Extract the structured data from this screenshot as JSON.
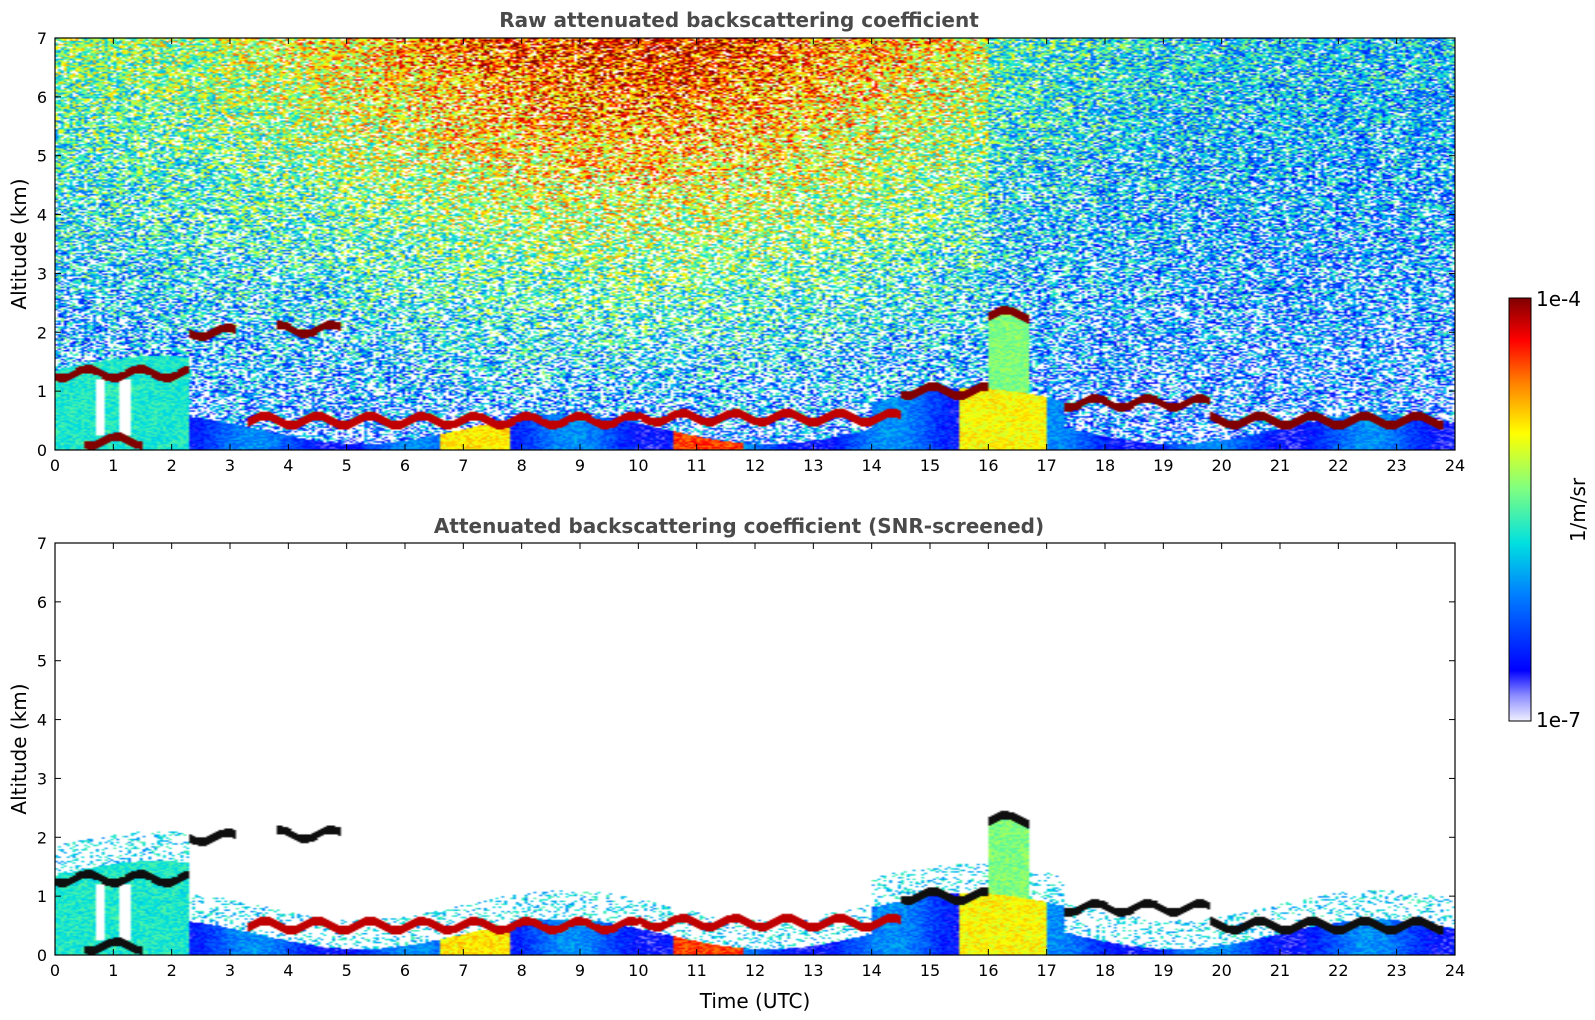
{
  "chart_data": [
    {
      "type": "heatmap",
      "title": "Raw attenuated backscattering coefficient",
      "xlabel": "",
      "ylabel": "Altitude (km)",
      "xlim": [
        0,
        24
      ],
      "ylim": [
        0,
        7
      ],
      "xticks": [
        "0",
        "1",
        "2",
        "3",
        "4",
        "5",
        "6",
        "7",
        "8",
        "9",
        "10",
        "11",
        "12",
        "13",
        "14",
        "15",
        "16",
        "17",
        "18",
        "19",
        "20",
        "21",
        "22",
        "23",
        "24"
      ],
      "yticks": [
        "0",
        "1",
        "2",
        "3",
        "4",
        "5",
        "6",
        "7"
      ],
      "noise": "high",
      "layers": [
        {
          "x": [
            0,
            2.3
          ],
          "y": 1.3,
          "level": 1.0
        },
        {
          "x": [
            0.5,
            1.5
          ],
          "y": 0.15,
          "level": 1.0
        },
        {
          "x": [
            2.3,
            3.1
          ],
          "y": 2.0,
          "level": 1.0
        },
        {
          "x": [
            3.8,
            4.9
          ],
          "y": 2.05,
          "level": 1.0
        },
        {
          "x": [
            3.3,
            10.0
          ],
          "y": 0.5,
          "level": 0.95
        },
        {
          "x": [
            10.0,
            14.5
          ],
          "y": 0.55,
          "level": 0.95
        },
        {
          "x": [
            14.5,
            16.0
          ],
          "y": 1.0,
          "level": 1.0
        },
        {
          "x": [
            16.0,
            16.7
          ],
          "y": 2.3,
          "level": 1.0
        },
        {
          "x": [
            17.3,
            19.8
          ],
          "y": 0.8,
          "level": 1.0
        },
        {
          "x": [
            19.8,
            23.8
          ],
          "y": 0.5,
          "level": 1.0
        }
      ]
    },
    {
      "type": "heatmap",
      "title": "Attenuated backscattering coefficient (SNR-screened)",
      "xlabel": "Time (UTC)",
      "ylabel": "Altitude (km)",
      "xlim": [
        0,
        24
      ],
      "ylim": [
        0,
        7
      ],
      "xticks": [
        "0",
        "1",
        "2",
        "3",
        "4",
        "5",
        "6",
        "7",
        "8",
        "9",
        "10",
        "11",
        "12",
        "13",
        "14",
        "15",
        "16",
        "17",
        "18",
        "19",
        "20",
        "21",
        "22",
        "23",
        "24"
      ],
      "yticks": [
        "0",
        "1",
        "2",
        "3",
        "4",
        "5",
        "6",
        "7"
      ],
      "noise": "screened",
      "layers": [
        {
          "x": [
            0,
            2.3
          ],
          "y": 1.3,
          "level": 1.0
        },
        {
          "x": [
            0.5,
            1.5
          ],
          "y": 0.15,
          "level": 1.0
        },
        {
          "x": [
            2.3,
            3.1
          ],
          "y": 2.0,
          "level": 1.0
        },
        {
          "x": [
            3.8,
            4.9
          ],
          "y": 2.05,
          "level": 1.0
        },
        {
          "x": [
            3.3,
            10.0
          ],
          "y": 0.5,
          "level": 0.95
        },
        {
          "x": [
            10.0,
            14.5
          ],
          "y": 0.55,
          "level": 0.95
        },
        {
          "x": [
            14.5,
            16.0
          ],
          "y": 1.0,
          "level": 1.0
        },
        {
          "x": [
            16.0,
            16.7
          ],
          "y": 2.3,
          "level": 1.0
        },
        {
          "x": [
            17.3,
            19.8
          ],
          "y": 0.8,
          "level": 1.0
        },
        {
          "x": [
            19.8,
            23.8
          ],
          "y": 0.5,
          "level": 1.0
        }
      ]
    }
  ],
  "colorbar": {
    "label": "1/m/sr",
    "max_label": "1e-4",
    "min_label": "1e-7",
    "colormap": "jet",
    "range": [
      1e-07,
      0.0001
    ]
  }
}
